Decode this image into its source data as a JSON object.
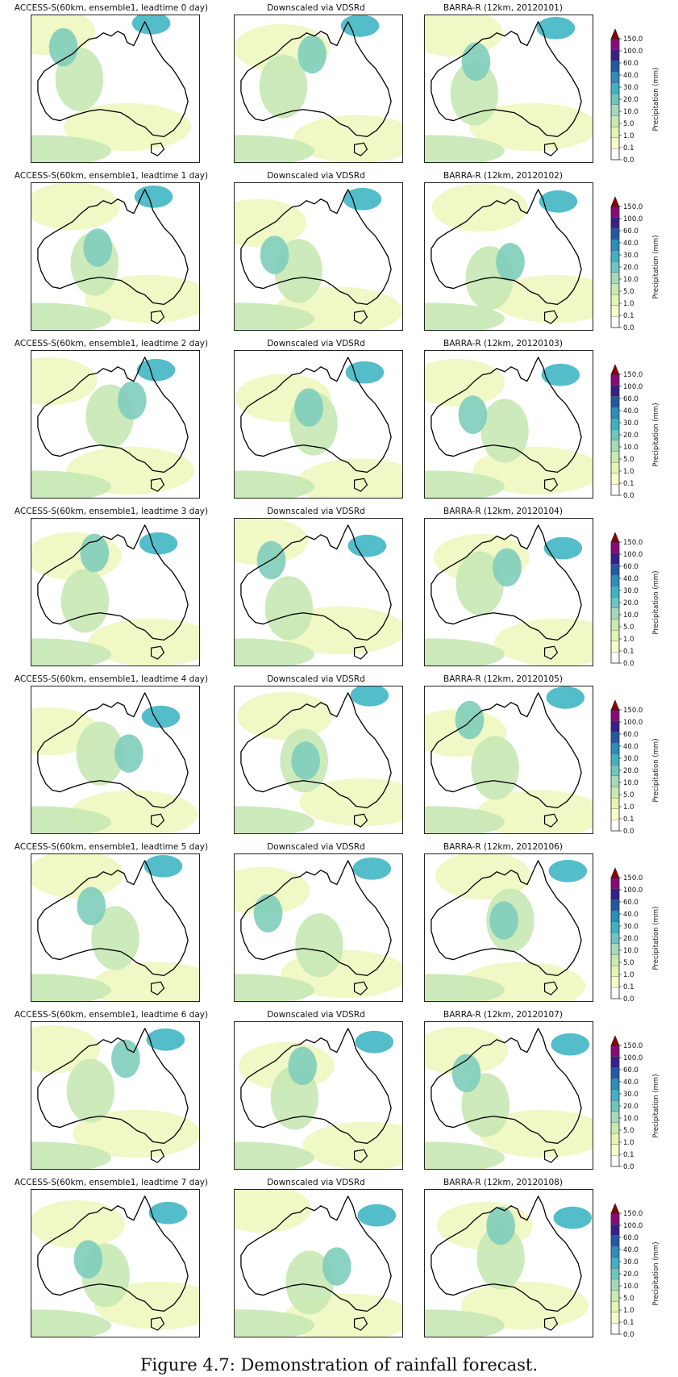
{
  "figure": {
    "caption": "Figure 4.7: Demonstration of rainfall forecast.",
    "colorbar": {
      "label": "Precipitation (mm)",
      "ticks": [
        "0.0",
        "0.1",
        "1.0",
        "5.0",
        "10.0",
        "20.0",
        "30.0",
        "40.0",
        "60.0",
        "100.0",
        "150.0"
      ],
      "colors": [
        "#ffffff",
        "#f7fcc8",
        "#e4f4b2",
        "#c8e9b3",
        "#a2dabb",
        "#6ec6c1",
        "#40b0c4",
        "#2b8cbe",
        "#2259a4",
        "#3a1f8c",
        "#8a0a7a"
      ],
      "extend_color": "#8b0000"
    },
    "colors": {
      "wet_light": "#eef7c0",
      "wet_mid": "#c6e8b4",
      "wet_heavy": "#7fcdbb",
      "wet_very_heavy": "#41b6c4",
      "coastline": "#000000"
    },
    "rows": [
      {
        "left_title": "ACCESS-S(60km, ensemble1, leadtime 0 day)",
        "middle_title": "Downscaled via VDSRd",
        "right_title": "BARRA-R (12km, 20120101)"
      },
      {
        "left_title": "ACCESS-S(60km, ensemble1, leadtime 1 day)",
        "middle_title": "Downscaled via VDSRd",
        "right_title": "BARRA-R (12km, 20120102)"
      },
      {
        "left_title": "ACCESS-S(60km, ensemble1, leadtime 2 day)",
        "middle_title": "Downscaled via VDSRd",
        "right_title": "BARRA-R (12km, 20120103)"
      },
      {
        "left_title": "ACCESS-S(60km, ensemble1, leadtime 3 day)",
        "middle_title": "Downscaled via VDSRd",
        "right_title": "BARRA-R (12km, 20120104)"
      },
      {
        "left_title": "ACCESS-S(60km, ensemble1, leadtime 4 day)",
        "middle_title": "Downscaled via VDSRd",
        "right_title": "BARRA-R (12km, 20120105)"
      },
      {
        "left_title": "ACCESS-S(60km, ensemble1, leadtime 5 day)",
        "middle_title": "Downscaled via VDSRd",
        "right_title": "BARRA-R (12km, 20120106)"
      },
      {
        "left_title": "ACCESS-S(60km, ensemble1, leadtime 6 day)",
        "middle_title": "Downscaled via VDSRd",
        "right_title": "BARRA-R (12km, 20120107)"
      },
      {
        "left_title": "ACCESS-S(60km, ensemble1, leadtime 7 day)",
        "middle_title": "Downscaled via VDSRd",
        "right_title": "BARRA-R (12km, 20120108)"
      }
    ]
  }
}
